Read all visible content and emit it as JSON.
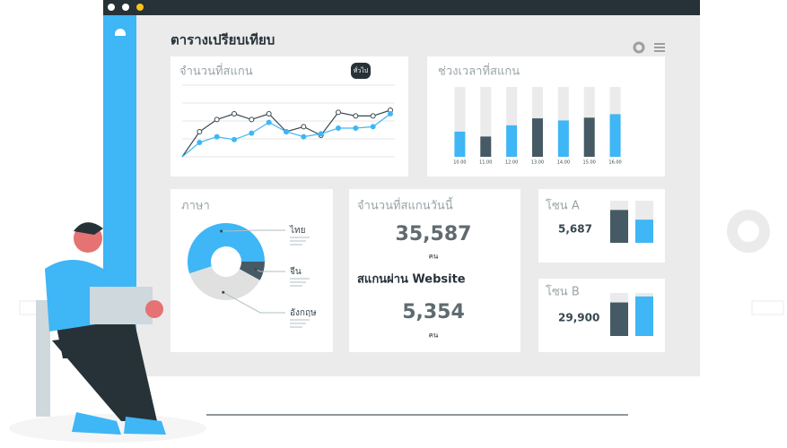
{
  "header": {
    "title": "ตารางเปรียบเทียบ"
  },
  "line_card": {
    "title": "จำนวนที่สแกน",
    "badge": "ทั่วไป",
    "chart_data": {
      "type": "line",
      "ylim": [
        0,
        100
      ],
      "series": [
        {
          "color": "#37474f",
          "values": [
            0,
            35,
            52,
            60,
            52,
            60,
            35,
            42,
            30,
            62,
            57,
            57,
            65
          ]
        },
        {
          "color": "#3fb6f5",
          "values": [
            0,
            20,
            28,
            24,
            33,
            48,
            35,
            28,
            32,
            40,
            40,
            42,
            60
          ]
        }
      ]
    }
  },
  "bar_card": {
    "title": "ช่วงเวลาที่สแกน",
    "chart_data": {
      "type": "bar",
      "ylim": [
        0,
        100
      ],
      "categories": [
        "10.00",
        "11.00",
        "12.00",
        "13.00",
        "14.00",
        "15.00",
        "16.00"
      ],
      "values": [
        36,
        29,
        45,
        55,
        52,
        56,
        61
      ],
      "colors": [
        "#3fb6f5",
        "#455a64",
        "#3fb6f5",
        "#455a64",
        "#3fb6f5",
        "#455a64",
        "#3fb6f5"
      ]
    }
  },
  "lang_card": {
    "title": "ภาษา",
    "chart_data": {
      "type": "donut",
      "categories": [
        "ไทย",
        "จีน",
        "อังกฤษ"
      ],
      "values": [
        55,
        8,
        37
      ],
      "colors": [
        "#3fb6f5",
        "#455a64",
        "#e0e0e0"
      ]
    }
  },
  "stats_card": {
    "today_label": "จำนวนที่สแกนวันนี้",
    "today_value": "35,587",
    "today_unit": "คน",
    "web_label": "สแกนผ่าน Website",
    "web_value": "5,354",
    "web_unit": "คน"
  },
  "zones": [
    {
      "name": "โซน A",
      "value": "5,687",
      "chart_data": {
        "type": "bar",
        "ylim": [
          0,
          100
        ],
        "values": [
          78,
          55
        ],
        "colors": [
          "#455a64",
          "#3fb6f5"
        ]
      }
    },
    {
      "name": "โซน B",
      "value": "29,900",
      "chart_data": {
        "type": "bar",
        "ylim": [
          0,
          100
        ],
        "values": [
          78,
          92
        ],
        "colors": [
          "#455a64",
          "#3fb6f5"
        ]
      }
    }
  ]
}
